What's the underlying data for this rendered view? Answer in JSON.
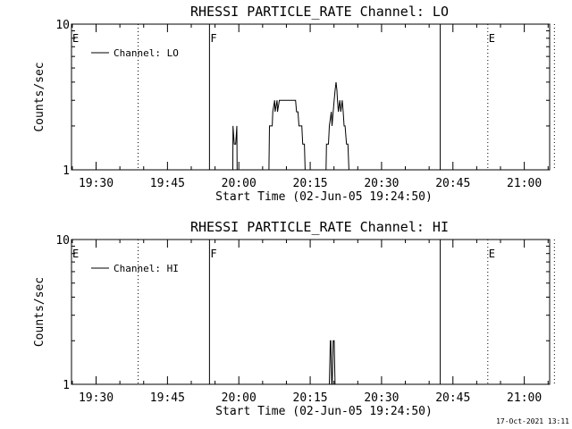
{
  "footer": {
    "timestamp": "17-Oct-2021 13:11"
  },
  "chart_data": [
    {
      "type": "line",
      "title": "RHESSI PARTICLE_RATE Channel: LO",
      "xlabel": "Start Time (02-Jun-05 19:24:50)",
      "ylabel": "Counts/sec",
      "x_unit": "minutes after 19:24:50",
      "xlim": [
        0,
        100.5
      ],
      "ylim": [
        1,
        10
      ],
      "y_scale": "log",
      "y_ticks": [
        {
          "label": "1",
          "value": 1
        },
        {
          "label": "10",
          "value": 10
        }
      ],
      "x_ticks": [
        {
          "label": "19:30",
          "value": 5.17
        },
        {
          "label": "19:45",
          "value": 20.17
        },
        {
          "label": "20:00",
          "value": 35.17
        },
        {
          "label": "20:15",
          "value": 50.17
        },
        {
          "label": "20:30",
          "value": 65.17
        },
        {
          "label": "20:45",
          "value": 80.17
        },
        {
          "label": "21:00",
          "value": 95.17
        }
      ],
      "legend": {
        "entries": [
          "Channel: LO"
        ],
        "position": "top-left"
      },
      "flag_lines": [
        {
          "label": "E",
          "value": 0,
          "style": "none"
        },
        {
          "label": "",
          "value": 14,
          "style": "dotted"
        },
        {
          "label": "F",
          "value": 29,
          "style": "solid"
        },
        {
          "label": "",
          "value": 77.5,
          "style": "solid"
        },
        {
          "label": "E",
          "value": 87.5,
          "style": "dotted"
        },
        {
          "label": "",
          "value": 101.5,
          "style": "dotted"
        }
      ],
      "series": [
        {
          "name": "Channel: LO",
          "x": [
            33.9,
            33.95,
            34.2,
            34.5,
            34.75,
            34.8,
            41.5,
            41.6,
            42.2,
            42.3,
            42.7,
            42.8,
            43.2,
            43.3,
            43.7,
            43.8,
            44.3,
            44.5,
            47.1,
            47.3,
            47.6,
            47.8,
            48.4,
            48.6,
            48.95,
            49.1,
            53.5,
            53.6,
            54.0,
            54.2,
            54.6,
            54.75,
            55.0,
            55.2,
            55.4,
            55.6,
            55.8,
            55.9,
            56.1,
            56.4,
            56.6,
            56.9,
            57.1,
            57.3,
            57.5,
            57.8,
            58.1,
            58.3,
            58.5,
            58.6
          ],
          "y": [
            1,
            2,
            1.5,
            1.5,
            2,
            1,
            1,
            2,
            2,
            2.5,
            3,
            2.5,
            3,
            2.5,
            3,
            3,
            3,
            3,
            3,
            2.5,
            2.5,
            2,
            2,
            1.5,
            1.5,
            1,
            1,
            1.5,
            1.5,
            2,
            2.5,
            2,
            2.5,
            3,
            3.5,
            4,
            3.5,
            3,
            2.5,
            3,
            2.5,
            3,
            2.5,
            2,
            2,
            1.5,
            1.5,
            1,
            1,
            1
          ]
        }
      ]
    },
    {
      "type": "line",
      "title": "RHESSI PARTICLE_RATE Channel: HI",
      "xlabel": "Start Time (02-Jun-05 19:24:50)",
      "ylabel": "Counts/sec",
      "x_unit": "minutes after 19:24:50",
      "xlim": [
        0,
        100.5
      ],
      "ylim": [
        1,
        10
      ],
      "y_scale": "log",
      "y_ticks": [
        {
          "label": "1",
          "value": 1
        },
        {
          "label": "10",
          "value": 10
        }
      ],
      "x_ticks": [
        {
          "label": "19:30",
          "value": 5.17
        },
        {
          "label": "19:45",
          "value": 20.17
        },
        {
          "label": "20:00",
          "value": 35.17
        },
        {
          "label": "20:15",
          "value": 50.17
        },
        {
          "label": "20:30",
          "value": 65.17
        },
        {
          "label": "20:45",
          "value": 80.17
        },
        {
          "label": "21:00",
          "value": 95.17
        }
      ],
      "legend": {
        "entries": [
          "Channel: HI"
        ],
        "position": "top-left"
      },
      "flag_lines": [
        {
          "label": "E",
          "value": 0,
          "style": "none"
        },
        {
          "label": "",
          "value": 14,
          "style": "dotted"
        },
        {
          "label": "F",
          "value": 29,
          "style": "solid"
        },
        {
          "label": "",
          "value": 77.5,
          "style": "solid"
        },
        {
          "label": "E",
          "value": 87.5,
          "style": "dotted"
        },
        {
          "label": "",
          "value": 101.5,
          "style": "dotted"
        }
      ],
      "series": [
        {
          "name": "Channel: HI",
          "x": [
            54.2,
            54.4,
            54.5,
            54.7,
            54.8,
            55.0,
            55.2,
            55.4,
            55.6
          ],
          "y": [
            1,
            2,
            2,
            1,
            1,
            2,
            2,
            1,
            1
          ]
        }
      ]
    }
  ]
}
